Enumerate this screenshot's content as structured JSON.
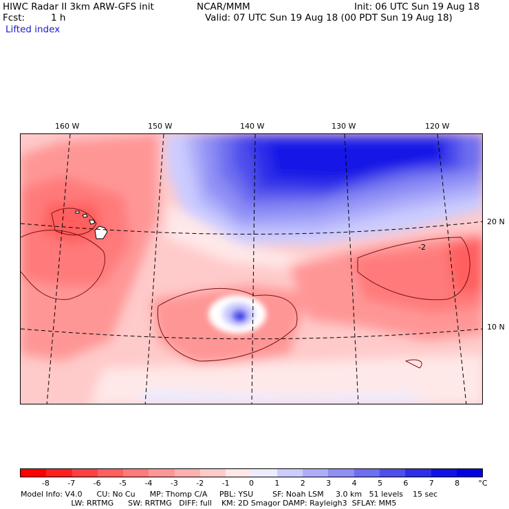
{
  "header": {
    "title_left": "HIWC Radar II 3km ARW-GFS init",
    "org": "NCAR/MMM",
    "init": "Init: 06 UTC Sun 19 Aug 18",
    "fcst_label": "Fcst:",
    "fcst_value": "1 h",
    "valid": "Valid: 07 UTC Sun 19 Aug 18 (00 PDT Sun 19 Aug 18)",
    "field_name": "Lifted index"
  },
  "map": {
    "lon_labels": [
      "160 W",
      "150 W",
      "140 W",
      "130 W",
      "120 W"
    ],
    "lat_labels": [
      "20 N",
      "10 N"
    ],
    "contour_label": "-2"
  },
  "colorbar": {
    "unit": "°C",
    "ticks": [
      "-8",
      "-7",
      "-6",
      "-5",
      "-4",
      "-3",
      "-2",
      "-1",
      "0",
      "1",
      "2",
      "3",
      "4",
      "5",
      "6",
      "7",
      "8"
    ],
    "colors": [
      "#ff0000",
      "#ff2020",
      "#ff4040",
      "#ff5f5f",
      "#ff7a7a",
      "#ff9696",
      "#ffb0b0",
      "#ffcaca",
      "#ffe8e8",
      "#ececff",
      "#ccccff",
      "#aeaefa",
      "#8e8ef5",
      "#6e6ef0",
      "#4e4eec",
      "#2e2ee8",
      "#1212e6",
      "#0000e0"
    ]
  },
  "footer": {
    "line1": "Model Info: V4.0      CU: No Cu      MP: Thomp C/A     PBL: YSU        SF: Noah LSM     3.0 km   51 levels    15 sec",
    "line2": "                     LW: RRTMG      SW: RRTMG   DIFF: full    KM: 2D Smagor DAMP: Rayleigh3  SFLAY: MM5"
  }
}
